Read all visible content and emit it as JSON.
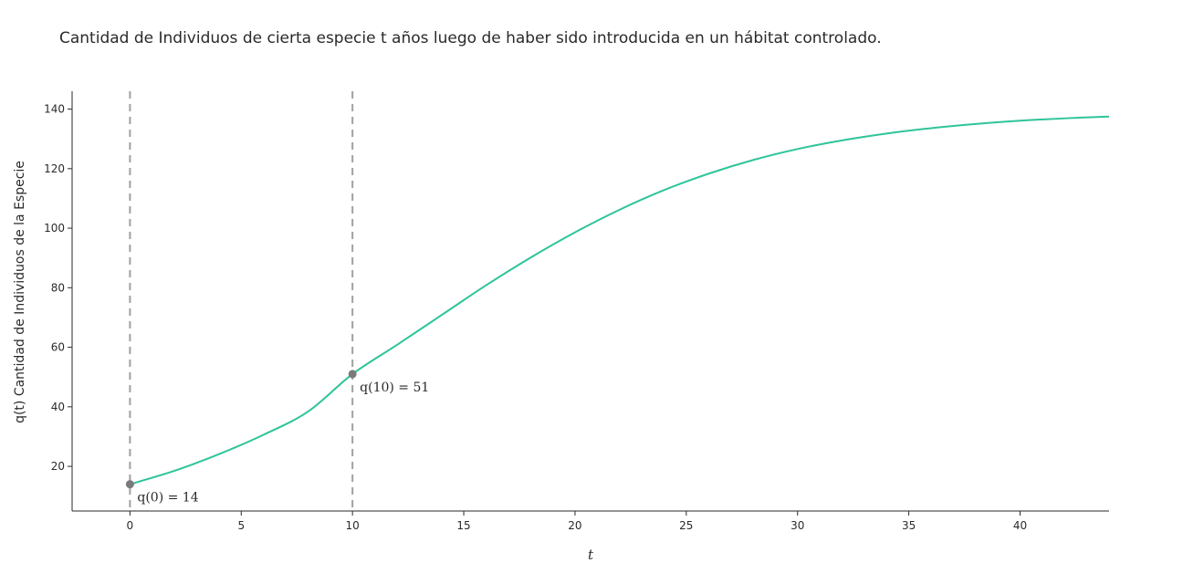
{
  "chart_data": {
    "type": "line",
    "title": "Cantidad de Individuos de cierta especie t años luego de haber sido introducida en un hábitat controlado.",
    "xlabel": "t",
    "ylabel": "q(t) Cantidad de Individuos de la Especie",
    "xlim": [
      -2.6,
      44
    ],
    "ylim": [
      5,
      146
    ],
    "x_ticks": [
      0,
      5,
      10,
      15,
      20,
      25,
      30,
      35,
      40
    ],
    "y_ticks": [
      20,
      40,
      60,
      80,
      100,
      120,
      140
    ],
    "grid": false,
    "series": [
      {
        "color": "#2ec49a",
        "x": [
          0,
          2,
          4,
          6,
          8,
          10,
          12,
          14,
          16,
          18,
          20,
          22,
          24,
          26,
          28,
          30,
          32,
          34,
          36,
          38,
          40,
          42,
          44
        ],
        "y": [
          14,
          18.5,
          24.1,
          30.6,
          38.4,
          51,
          60.8,
          70.8,
          80.8,
          90.1,
          98.6,
          106.2,
          112.8,
          118.3,
          122.9,
          126.6,
          129.5,
          131.8,
          133.6,
          135,
          136.1,
          136.9,
          137.5
        ]
      }
    ],
    "vlines": [
      {
        "x": 0,
        "color": "#a0a0a0",
        "style": "dashed"
      },
      {
        "x": 10,
        "color": "#a0a0a0",
        "style": "dashed"
      }
    ],
    "points": [
      {
        "x": 0,
        "y": 14,
        "label": "q(0) = 14",
        "color": "#7a7a7a"
      },
      {
        "x": 10,
        "y": 51,
        "label": "q(10) = 51",
        "color": "#7a7a7a"
      }
    ]
  }
}
